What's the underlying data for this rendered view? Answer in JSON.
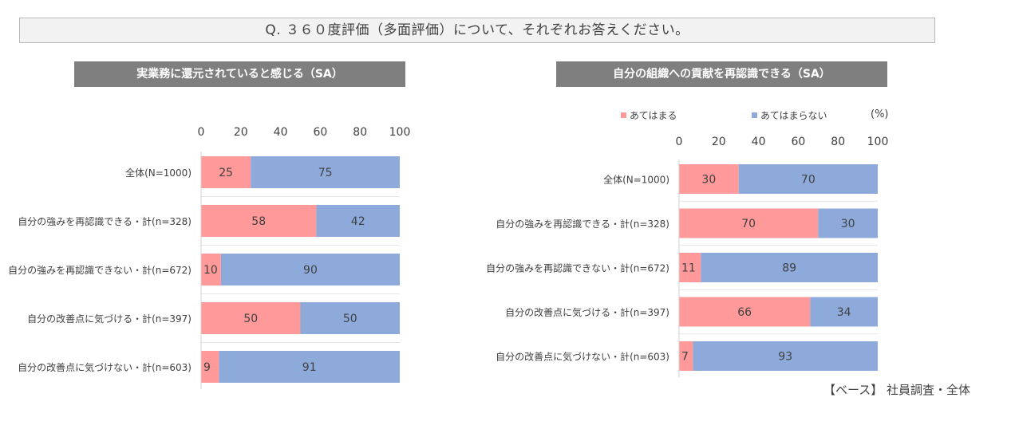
{
  "question": "Q. ３６０度評価（多面評価）について、それぞれお答えください。",
  "legend": {
    "yes": "あてはまる",
    "no": "あてはまらない",
    "unit": "(%)"
  },
  "base_note": "【ベース】 社員調査・全体",
  "colors": {
    "yes": "#ff999a",
    "no": "#8eaadb"
  },
  "chart_data": [
    {
      "type": "bar",
      "orientation": "horizontal",
      "stacked": true,
      "title": "実業務に還元されていると感じる（SA）",
      "xlim": [
        0,
        100
      ],
      "xticks": [
        "0",
        "20",
        "40",
        "60",
        "80",
        "100"
      ],
      "categories": [
        "全体(N=1000)",
        "自分の強みを再認識できる・計(n=328)",
        "自分の強みを再認識できない・計(n=672)",
        "自分の改善点に気づける・計(n=397)",
        "自分の改善点に気づけない・計(n=603)"
      ],
      "series": [
        {
          "name": "あてはまる",
          "values": [
            25,
            58,
            10,
            50,
            9
          ]
        },
        {
          "name": "あてはまらない",
          "values": [
            75,
            42,
            90,
            50,
            91
          ]
        }
      ]
    },
    {
      "type": "bar",
      "orientation": "horizontal",
      "stacked": true,
      "title": "自分の組織への貢献を再認識できる（SA）",
      "xlim": [
        0,
        100
      ],
      "xticks": [
        "0",
        "20",
        "40",
        "60",
        "80",
        "100"
      ],
      "categories": [
        "全体(N=1000)",
        "自分の強みを再認識できる・計(n=328)",
        "自分の強みを再認識できない・計(n=672)",
        "自分の改善点に気づける・計(n=397)",
        "自分の改善点に気づけない・計(n=603)"
      ],
      "series": [
        {
          "name": "あてはまる",
          "values": [
            30,
            70,
            11,
            66,
            7
          ]
        },
        {
          "name": "あてはまらない",
          "values": [
            70,
            30,
            89,
            34,
            93
          ]
        }
      ]
    }
  ]
}
